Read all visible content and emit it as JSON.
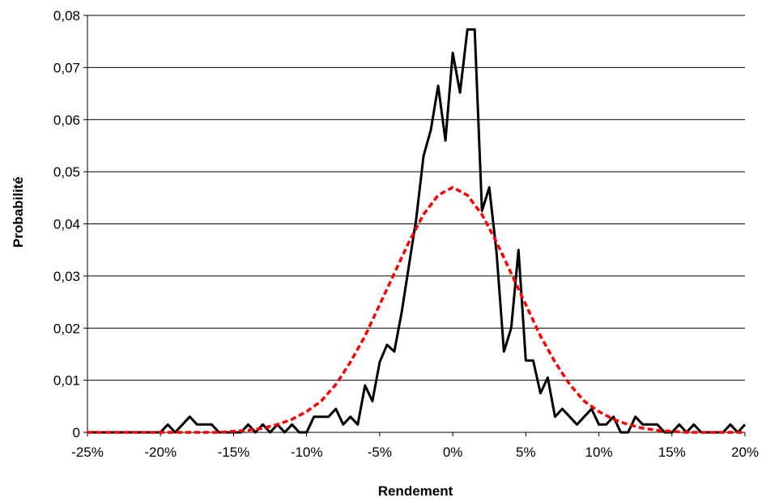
{
  "chart_data": {
    "type": "line",
    "title": "",
    "xlabel": "Rendement",
    "ylabel": "Probabilité",
    "xlim": [
      -25,
      20
    ],
    "ylim": [
      0,
      0.08
    ],
    "x_ticks": [
      -25,
      -20,
      -15,
      -10,
      -5,
      0,
      5,
      10,
      15,
      20
    ],
    "x_tick_labels": [
      "-25%",
      "-20%",
      "-15%",
      "-10%",
      "-5%",
      "0%",
      "5%",
      "10%",
      "15%",
      "20%"
    ],
    "y_ticks": [
      0,
      0.01,
      0.02,
      0.03,
      0.04,
      0.05,
      0.06,
      0.07,
      0.08
    ],
    "y_tick_labels": [
      "0",
      "0,01",
      "0,02",
      "0,03",
      "0,04",
      "0,05",
      "0,06",
      "0,07",
      "0,08"
    ],
    "grid": "horizontal",
    "legend": "none",
    "series": [
      {
        "style": "solid",
        "color": "#000000",
        "points": [
          [
            -25,
            0
          ],
          [
            -20,
            0
          ],
          [
            -19.5,
            0.0015
          ],
          [
            -19,
            0
          ],
          [
            -18,
            0.003
          ],
          [
            -17.5,
            0.0015
          ],
          [
            -16.5,
            0.0015
          ],
          [
            -16,
            0
          ],
          [
            -14.5,
            0
          ],
          [
            -14,
            0.0015
          ],
          [
            -13.5,
            0
          ],
          [
            -13,
            0.0015
          ],
          [
            -12.5,
            0
          ],
          [
            -12,
            0.0015
          ],
          [
            -11.5,
            0
          ],
          [
            -11,
            0.0015
          ],
          [
            -10.5,
            0
          ],
          [
            -10,
            0
          ],
          [
            -9.5,
            0.003
          ],
          [
            -9,
            0.003
          ],
          [
            -8.5,
            0.003
          ],
          [
            -8,
            0.0045
          ],
          [
            -7.5,
            0.0015
          ],
          [
            -7,
            0.003
          ],
          [
            -6.5,
            0.0015
          ],
          [
            -6,
            0.009
          ],
          [
            -5.5,
            0.006
          ],
          [
            -5,
            0.0135
          ],
          [
            -4.5,
            0.0168
          ],
          [
            -4,
            0.0155
          ],
          [
            -3.5,
            0.023
          ],
          [
            -3,
            0.032
          ],
          [
            -2.5,
            0.041
          ],
          [
            -2,
            0.053
          ],
          [
            -1.5,
            0.058
          ],
          [
            -1,
            0.0665
          ],
          [
            -0.5,
            0.056
          ],
          [
            0,
            0.0728
          ],
          [
            0.5,
            0.0652
          ],
          [
            1,
            0.0773
          ],
          [
            1.5,
            0.0773
          ],
          [
            2,
            0.0425
          ],
          [
            2.5,
            0.047
          ],
          [
            3,
            0.0345
          ],
          [
            3.5,
            0.0155
          ],
          [
            4,
            0.02
          ],
          [
            4.5,
            0.035
          ],
          [
            5,
            0.0138
          ],
          [
            5.5,
            0.0138
          ],
          [
            6,
            0.0075
          ],
          [
            6.5,
            0.0105
          ],
          [
            7,
            0.003
          ],
          [
            7.5,
            0.0045
          ],
          [
            8,
            0.003
          ],
          [
            8.5,
            0.0015
          ],
          [
            9,
            0.003
          ],
          [
            9.5,
            0.0045
          ],
          [
            10,
            0.0015
          ],
          [
            10.5,
            0.0015
          ],
          [
            11,
            0.003
          ],
          [
            11.5,
            0
          ],
          [
            12,
            0
          ],
          [
            12.5,
            0.003
          ],
          [
            13,
            0.0015
          ],
          [
            14,
            0.0015
          ],
          [
            14.5,
            0
          ],
          [
            15,
            0
          ],
          [
            15.5,
            0.0015
          ],
          [
            16,
            0
          ],
          [
            16.5,
            0.0015
          ],
          [
            17,
            0
          ],
          [
            18.5,
            0
          ],
          [
            19,
            0.0015
          ],
          [
            19.5,
            0
          ],
          [
            20,
            0.0015
          ]
        ]
      },
      {
        "style": "dashed",
        "color": "#ff0000",
        "points": [
          [
            -25,
            0
          ],
          [
            -16,
            0
          ],
          [
            -15,
            0.0002
          ],
          [
            -14,
            0.0004
          ],
          [
            -13,
            0.0008
          ],
          [
            -12,
            0.0015
          ],
          [
            -11,
            0.0025
          ],
          [
            -10,
            0.004
          ],
          [
            -9,
            0.006
          ],
          [
            -8,
            0.0092
          ],
          [
            -7,
            0.0135
          ],
          [
            -6,
            0.0185
          ],
          [
            -5,
            0.0245
          ],
          [
            -4,
            0.0305
          ],
          [
            -3,
            0.0365
          ],
          [
            -2,
            0.0418
          ],
          [
            -1,
            0.0455
          ],
          [
            0,
            0.047
          ],
          [
            1,
            0.0455
          ],
          [
            2,
            0.0418
          ],
          [
            3,
            0.0365
          ],
          [
            4,
            0.0305
          ],
          [
            5,
            0.0245
          ],
          [
            6,
            0.0185
          ],
          [
            7,
            0.0135
          ],
          [
            8,
            0.0092
          ],
          [
            9,
            0.006
          ],
          [
            10,
            0.004
          ],
          [
            11,
            0.0025
          ],
          [
            12,
            0.0015
          ],
          [
            13,
            0.0008
          ],
          [
            14,
            0.0004
          ],
          [
            15,
            0.0002
          ],
          [
            16,
            0
          ],
          [
            20,
            0
          ]
        ]
      }
    ]
  }
}
